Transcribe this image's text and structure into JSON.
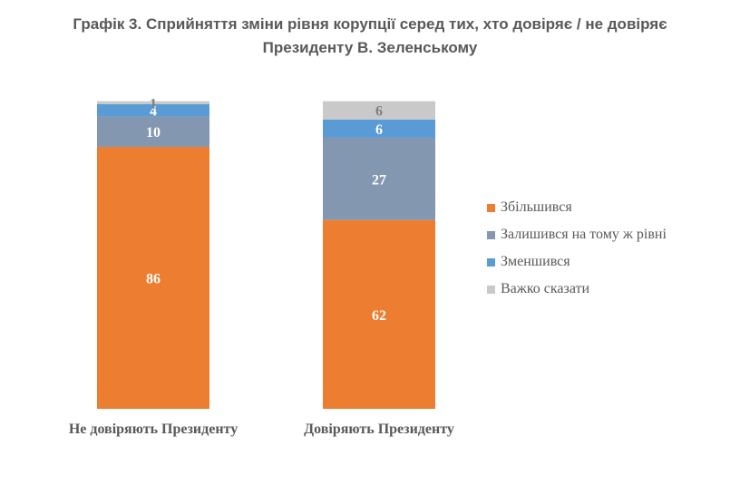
{
  "chart_data": {
    "type": "stacked-bar",
    "title": [
      "Графік 3. Сприйняття зміни рівня корупції серед тих, хто довіряє / не довіряє",
      "Президенту В. Зеленському"
    ],
    "categories": [
      "Не довіряють Президенту",
      "Довіряють Президенту"
    ],
    "series": [
      {
        "name": "Збільшився",
        "color": "#ED7D31",
        "values": [
          86,
          62
        ],
        "label_color": "#ffffff"
      },
      {
        "name": "Залишився на тому ж рівні",
        "color": "#8497B0",
        "values": [
          10,
          27
        ],
        "label_color": "#ffffff"
      },
      {
        "name": "Зменшився",
        "color": "#5B9BD5",
        "values": [
          4,
          6
        ],
        "label_color": "#ffffff"
      },
      {
        "name": "Важко сказати",
        "color": "#C9C9C9",
        "values": [
          1,
          6
        ],
        "label_color": "#7f7f7f"
      }
    ],
    "data_labels": [
      [
        "86",
        "10",
        "4",
        "1"
      ],
      [
        "62",
        "27",
        "6",
        "6"
      ]
    ],
    "legend_position": "right"
  }
}
